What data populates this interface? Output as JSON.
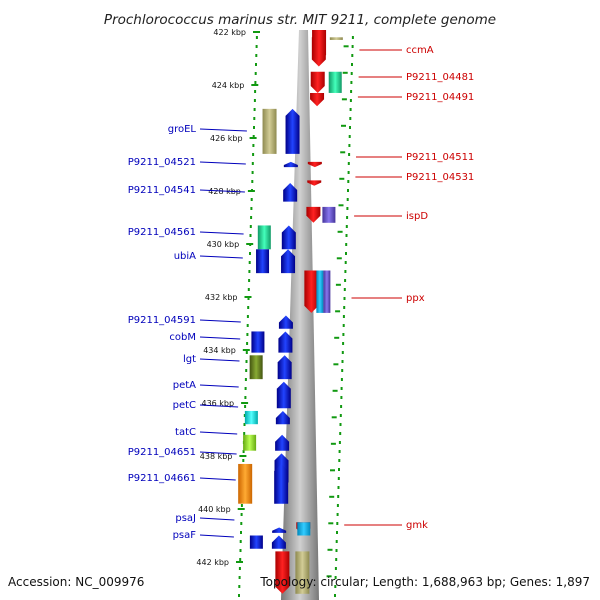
{
  "title": "Prochlorococcus marinus str. MIT 9211, complete genome",
  "footer": {
    "accession": "Accession: NC_009976",
    "topology": "Topology: circular; Length: 1,688,963 bp; Genes: 1,897"
  },
  "colors": {
    "forward_label": "#0000bb",
    "reverse_label": "#cc0000",
    "dots": "#119911",
    "backbone": "#9a9a9a"
  },
  "ticks": [
    {
      "label": "422 kbp",
      "kbp": 422
    },
    {
      "label": "424 kbp",
      "kbp": 424
    },
    {
      "label": "426 kbp",
      "kbp": 426
    },
    {
      "label": "428 kbp",
      "kbp": 428
    },
    {
      "label": "430 kbp",
      "kbp": 430
    },
    {
      "label": "432 kbp",
      "kbp": 432
    },
    {
      "label": "434 kbp",
      "kbp": 434
    },
    {
      "label": "436 kbp",
      "kbp": 436
    },
    {
      "label": "438 kbp",
      "kbp": 438
    },
    {
      "label": "440 kbp",
      "kbp": 440
    },
    {
      "label": "442 kbp",
      "kbp": 442
    }
  ],
  "forward_genes": [
    {
      "label": "groEL",
      "start_kbp": 424.9,
      "end_kbp": 426.6
    },
    {
      "label": "P9211_04521",
      "start_kbp": 426.9,
      "end_kbp": 427.1
    },
    {
      "label": "P9211_04541",
      "start_kbp": 427.7,
      "end_kbp": 428.4
    },
    {
      "label": "P9211_04561",
      "start_kbp": 429.3,
      "end_kbp": 430.2
    },
    {
      "label": "ubiA",
      "start_kbp": 430.2,
      "end_kbp": 431.1
    },
    {
      "label": "P9211_04591",
      "start_kbp": 432.7,
      "end_kbp": 433.2
    },
    {
      "label": "cobM",
      "start_kbp": 433.3,
      "end_kbp": 434.1
    },
    {
      "label": "lgt",
      "start_kbp": 434.2,
      "end_kbp": 435.1
    },
    {
      "label": "petA",
      "start_kbp": 435.2,
      "end_kbp": 436.2
    },
    {
      "label": "petC",
      "start_kbp": 436.3,
      "end_kbp": 436.8
    },
    {
      "label": "tatC",
      "start_kbp": 437.2,
      "end_kbp": 437.8
    },
    {
      "label": "P9211_04651",
      "start_kbp": 437.9,
      "end_kbp": 439.0
    },
    {
      "label": "P9211_04661",
      "start_kbp": 438.3,
      "end_kbp": 439.8
    },
    {
      "label": "psaJ",
      "start_kbp": 440.7,
      "end_kbp": 440.9
    },
    {
      "label": "psaF",
      "start_kbp": 441.0,
      "end_kbp": 441.5
    }
  ],
  "reverse_genes": [
    {
      "label": "ccmA",
      "start_kbp": 422.2,
      "end_kbp": 423.3
    },
    {
      "label": "P9211_04481",
      "start_kbp": 423.5,
      "end_kbp": 424.3
    },
    {
      "label": "P9211_04491",
      "start_kbp": 424.3,
      "end_kbp": 424.8
    },
    {
      "label": "P9211_04511",
      "start_kbp": 426.9,
      "end_kbp": 427.1
    },
    {
      "label": "P9211_04531",
      "start_kbp": 427.6,
      "end_kbp": 427.8
    },
    {
      "label": "ispD",
      "start_kbp": 428.6,
      "end_kbp": 429.2
    },
    {
      "label": "ppx",
      "start_kbp": 431.0,
      "end_kbp": 432.6
    },
    {
      "label": "gmk",
      "start_kbp": 440.5,
      "end_kbp": 441.0
    }
  ]
}
